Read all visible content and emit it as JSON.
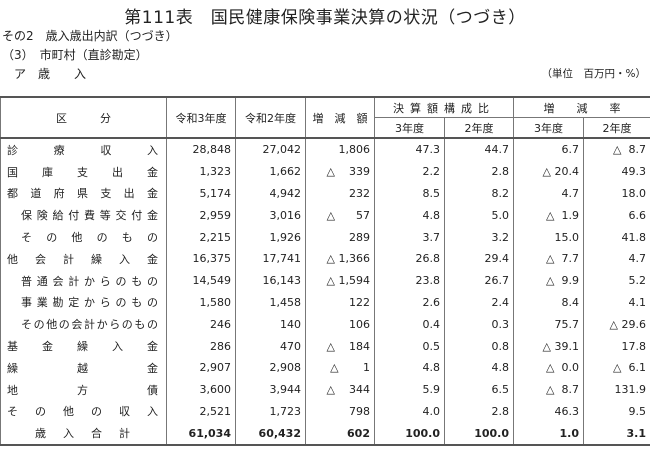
{
  "title": "第111表　国民健康保険事業決算の状況（つづき）",
  "subtitle1": "その2　歳入歳出内訳（つづき）",
  "subtitle2": "（3）　市町村（直診勘定）",
  "subtitle3": "ア　歳　　入",
  "unit": "（単位　百万円・%）",
  "headers": {
    "category": "区　　　分",
    "r3": "令和3年度",
    "r2": "令和2年度",
    "change": "増　減　額",
    "composition": "決算額構成比",
    "rate": "増　　減　　率",
    "comp_r3": "3年度",
    "comp_r2": "2年度",
    "rate_r3": "3年度",
    "rate_r2": "2年度"
  },
  "rows": [
    {
      "label": "診療収入",
      "indent": false,
      "values": [
        "28,848",
        "27,042",
        "1,806",
        "47.3",
        "44.7",
        "6.7",
        "△  8.7"
      ]
    },
    {
      "label": "国庫支出金",
      "indent": false,
      "values": [
        "1,323",
        "1,662",
        "△    339",
        "2.2",
        "2.8",
        "△ 20.4",
        "49.3"
      ]
    },
    {
      "label": "都道府県支出金",
      "indent": false,
      "values": [
        "5,174",
        "4,942",
        "232",
        "8.5",
        "8.2",
        "4.7",
        "18.0"
      ]
    },
    {
      "label": "保険給付費等交付金",
      "indent": true,
      "values": [
        "2,959",
        "3,016",
        "△      57",
        "4.8",
        "5.0",
        "△  1.9",
        "6.6"
      ]
    },
    {
      "label": "その他のもの",
      "indent": true,
      "values": [
        "2,215",
        "1,926",
        "289",
        "3.7",
        "3.2",
        "15.0",
        "41.8"
      ]
    },
    {
      "label": "他会計繰入金",
      "indent": false,
      "values": [
        "16,375",
        "17,741",
        "△ 1,366",
        "26.8",
        "29.4",
        "△  7.7",
        "4.7"
      ]
    },
    {
      "label": "普通会計からのもの",
      "indent": true,
      "values": [
        "14,549",
        "16,143",
        "△ 1,594",
        "23.8",
        "26.7",
        "△  9.9",
        "5.2"
      ]
    },
    {
      "label": "事業勘定からのもの",
      "indent": true,
      "values": [
        "1,580",
        "1,458",
        "122",
        "2.6",
        "2.4",
        "8.4",
        "4.1"
      ]
    },
    {
      "label": "その他の会計からのもの",
      "indent": true,
      "values": [
        "246",
        "140",
        "106",
        "0.4",
        "0.3",
        "75.7",
        "△ 29.6"
      ]
    },
    {
      "label": "基金繰入金",
      "indent": false,
      "values": [
        "286",
        "470",
        "△    184",
        "0.5",
        "0.8",
        "△ 39.1",
        "17.8"
      ]
    },
    {
      "label": "繰越金",
      "indent": false,
      "values": [
        "2,907",
        "2,908",
        "△       1",
        "4.8",
        "4.8",
        "△  0.0",
        "△  6.1"
      ]
    },
    {
      "label": "地方債",
      "indent": false,
      "values": [
        "3,600",
        "3,944",
        "△    344",
        "5.9",
        "6.5",
        "△  8.7",
        "131.9"
      ]
    },
    {
      "label": "その他の収入",
      "indent": false,
      "values": [
        "2,521",
        "1,723",
        "798",
        "4.0",
        "2.8",
        "46.3",
        "9.5"
      ]
    },
    {
      "label": "歳入合計",
      "total": true,
      "values": [
        "61,034",
        "60,432",
        "602",
        "100.0",
        "100.0",
        "1.0",
        "3.1"
      ]
    }
  ]
}
